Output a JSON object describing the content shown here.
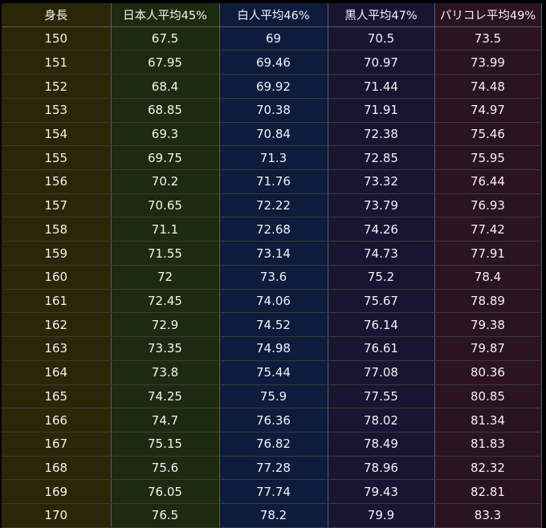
{
  "headers": [
    "身長",
    "日本人平均45%",
    "白人平均46%",
    "黒人平均47%",
    "パリコレ平均49%"
  ],
  "rows": [
    [
      "150",
      "67.5",
      "69",
      "70.5",
      "73.5"
    ],
    [
      "151",
      "67.95",
      "69.46",
      "70.97",
      "73.99"
    ],
    [
      "152",
      "68.4",
      "69.92",
      "71.44",
      "74.48"
    ],
    [
      "153",
      "68.85",
      "70.38",
      "71.91",
      "74.97"
    ],
    [
      "154",
      "69.3",
      "70.84",
      "72.38",
      "75.46"
    ],
    [
      "155",
      "69.75",
      "71.3",
      "72.85",
      "75.95"
    ],
    [
      "156",
      "70.2",
      "71.76",
      "73.32",
      "76.44"
    ],
    [
      "157",
      "70.65",
      "72.22",
      "73.79",
      "76.93"
    ],
    [
      "158",
      "71.1",
      "72.68",
      "74.26",
      "77.42"
    ],
    [
      "159",
      "71.55",
      "73.14",
      "74.73",
      "77.91"
    ],
    [
      "160",
      "72",
      "73.6",
      "75.2",
      "78.4"
    ],
    [
      "161",
      "72.45",
      "74.06",
      "75.67",
      "78.89"
    ],
    [
      "162",
      "72.9",
      "74.52",
      "76.14",
      "79.38"
    ],
    [
      "163",
      "73.35",
      "74.98",
      "76.61",
      "79.87"
    ],
    [
      "164",
      "73.8",
      "75.44",
      "77.08",
      "80.36"
    ],
    [
      "165",
      "74.25",
      "75.9",
      "77.55",
      "80.85"
    ],
    [
      "166",
      "74.7",
      "76.36",
      "78.02",
      "81.34"
    ],
    [
      "167",
      "75.15",
      "76.82",
      "78.49",
      "81.83"
    ],
    [
      "168",
      "75.6",
      "77.28",
      "78.96",
      "82.32"
    ],
    [
      "169",
      "76.05",
      "77.74",
      "79.43",
      "82.81"
    ],
    [
      "170",
      "76.5",
      "78.2",
      "79.9",
      "83.3"
    ]
  ],
  "colors": {
    "background": "#000000",
    "col_height": "#2c2608",
    "col_japanese": "#1e2a10",
    "col_white": "#0d1b3c",
    "col_black": "#1a1433",
    "col_pariscollection": "#2a1422",
    "text": "#f2f2f2",
    "grid": "#5a5a5a"
  }
}
